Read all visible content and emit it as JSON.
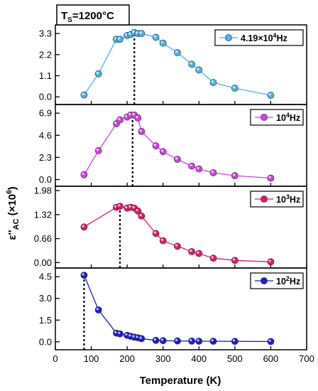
{
  "sample_label": {
    "main": "T",
    "sub": "S",
    "rest": "=1200°C"
  },
  "xlabel": "Temperature (K)",
  "ylabel": {
    "main": "ε''",
    "sub": "AC",
    "rest": " (×10",
    "sup": "6",
    "end": ")"
  },
  "chart_data": [
    {
      "type": "line",
      "legend": {
        "base": "4.19×10",
        "sup": "4",
        "unit": "Hz"
      },
      "legend_placement": "top-right",
      "color": "#45b6e8",
      "xlim": [
        0,
        700
      ],
      "ylim": [
        -0.4,
        3.75
      ],
      "yticks": [
        "0.0",
        "1.1",
        "2.2",
        "3.3"
      ],
      "ytick_values": [
        0.0,
        1.1,
        2.2,
        3.3
      ],
      "peak_x": 220,
      "x": [
        80,
        120,
        170,
        180,
        200,
        210,
        220,
        230,
        240,
        280,
        300,
        340,
        380,
        400,
        440,
        500,
        600
      ],
      "y": [
        0.1,
        1.2,
        3.0,
        3.0,
        3.2,
        3.25,
        3.35,
        3.3,
        3.3,
        3.1,
        2.8,
        2.3,
        1.7,
        1.4,
        0.75,
        0.45,
        0.08
      ]
    },
    {
      "type": "line",
      "legend": {
        "base": "10",
        "sup": "4",
        "unit": "Hz"
      },
      "legend_placement": "top-right",
      "color": "#d23ee6",
      "xlim": [
        0,
        700
      ],
      "ylim": [
        -0.7,
        7.8
      ],
      "yticks": [
        "0.0",
        "2.3",
        "4.6",
        "6.9"
      ],
      "ytick_values": [
        0.0,
        2.3,
        4.6,
        6.9
      ],
      "peak_x": 215,
      "x": [
        80,
        120,
        170,
        180,
        200,
        210,
        220,
        230,
        240,
        280,
        300,
        340,
        380,
        400,
        440,
        500,
        600
      ],
      "y": [
        0.5,
        3.0,
        5.8,
        6.2,
        6.5,
        6.7,
        6.7,
        6.4,
        5.0,
        3.5,
        2.9,
        2.1,
        1.4,
        1.1,
        0.7,
        0.4,
        0.15
      ]
    },
    {
      "type": "line",
      "legend": {
        "base": "10",
        "sup": "3",
        "unit": "Hz"
      },
      "legend_placement": "top-right",
      "color": "#e8156a",
      "xlim": [
        0,
        700
      ],
      "ylim": [
        -0.15,
        2.1
      ],
      "yticks": [
        "0.00",
        "0.66",
        "1.32",
        "1.98"
      ],
      "ytick_values": [
        0.0,
        0.66,
        1.32,
        1.98
      ],
      "peak_x": 180,
      "x": [
        80,
        170,
        180,
        200,
        210,
        220,
        230,
        240,
        280,
        300,
        340,
        380,
        400,
        440,
        500,
        600
      ],
      "y": [
        0.98,
        1.52,
        1.55,
        1.5,
        1.52,
        1.5,
        1.42,
        1.28,
        0.8,
        0.6,
        0.45,
        0.3,
        0.25,
        0.12,
        0.06,
        0.02
      ]
    },
    {
      "type": "line",
      "legend": {
        "base": "10",
        "sup": "2",
        "unit": "Hz"
      },
      "legend_placement": "top-right",
      "color": "#1a1adc",
      "xlim": [
        0,
        700
      ],
      "xticks": [
        "0",
        "100",
        "200",
        "300",
        "400",
        "500",
        "600",
        "700"
      ],
      "xtick_values": [
        0,
        100,
        200,
        300,
        400,
        500,
        600,
        700
      ],
      "ylim": [
        -0.55,
        5.1
      ],
      "yticks": [
        "0.0",
        "1.5",
        "3.0",
        "4.5"
      ],
      "ytick_values": [
        0.0,
        1.5,
        3.0,
        4.5
      ],
      "peak_x": 80,
      "x": [
        80,
        120,
        170,
        180,
        200,
        210,
        220,
        230,
        240,
        280,
        300,
        340,
        380,
        400,
        440,
        500,
        600
      ],
      "y": [
        4.6,
        2.2,
        0.6,
        0.55,
        0.45,
        0.38,
        0.32,
        0.28,
        0.22,
        0.1,
        0.08,
        0.06,
        0.05,
        0.04,
        0.04,
        0.03,
        0.02
      ]
    }
  ]
}
